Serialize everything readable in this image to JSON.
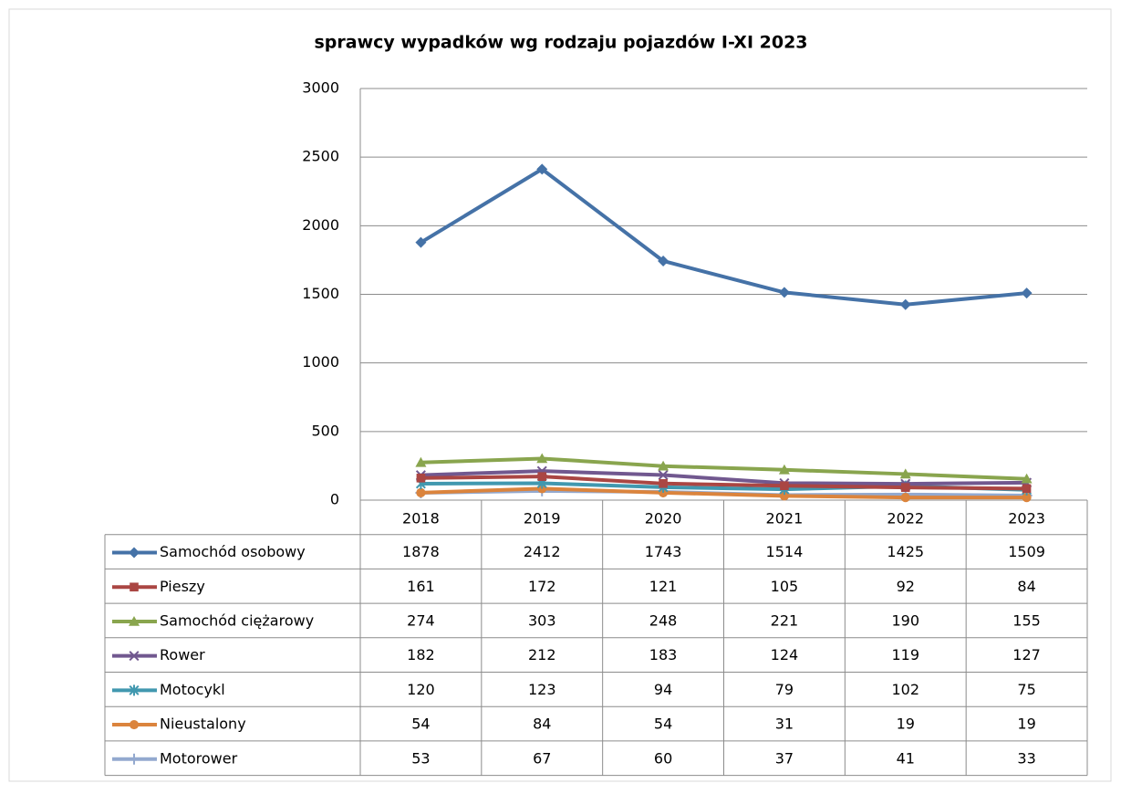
{
  "chart_data": {
    "type": "line",
    "title": "sprawcy wypadków wg rodzaju pojazdów I-XI 2023",
    "categories": [
      "2018",
      "2019",
      "2020",
      "2021",
      "2022",
      "2023"
    ],
    "series": [
      {
        "name": "Samochód osobowy",
        "color": "#4572a7",
        "marker": "diamond",
        "values": [
          1878,
          2412,
          1743,
          1514,
          1425,
          1509
        ]
      },
      {
        "name": "Pieszy",
        "color": "#aa4643",
        "marker": "square",
        "values": [
          161,
          172,
          121,
          105,
          92,
          84
        ]
      },
      {
        "name": "Samochód ciężarowy",
        "color": "#89a54e",
        "marker": "triangle",
        "values": [
          274,
          303,
          248,
          221,
          190,
          155
        ]
      },
      {
        "name": "Rower",
        "color": "#71588f",
        "marker": "x",
        "values": [
          182,
          212,
          183,
          124,
          119,
          127
        ]
      },
      {
        "name": "Motocykl",
        "color": "#4198af",
        "marker": "asterisk",
        "values": [
          120,
          123,
          94,
          79,
          102,
          75
        ]
      },
      {
        "name": "Nieustalony",
        "color": "#db843d",
        "marker": "circle",
        "values": [
          54,
          84,
          54,
          31,
          19,
          19
        ]
      },
      {
        "name": "Motorower",
        "color": "#93a9cf",
        "marker": "plus",
        "values": [
          53,
          67,
          60,
          37,
          41,
          33
        ]
      }
    ],
    "ylim": [
      0,
      3000
    ],
    "yticks": [
      0,
      500,
      1000,
      1500,
      2000,
      2500,
      3000
    ],
    "grid": true
  }
}
